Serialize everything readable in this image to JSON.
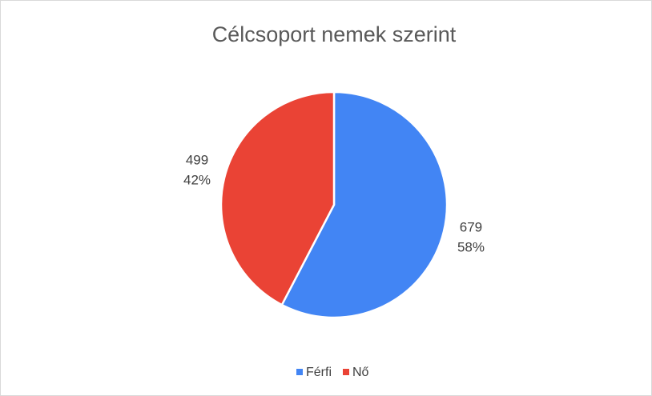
{
  "chart_data": {
    "type": "pie",
    "title": "Célcsoport nemek szerint",
    "categories": [
      "Férfi",
      "Nő"
    ],
    "values": [
      679,
      499
    ],
    "percent_labels": [
      "58%",
      "42%"
    ],
    "colors": [
      "#4285f4",
      "#ea4335"
    ],
    "legend": "bottom"
  }
}
